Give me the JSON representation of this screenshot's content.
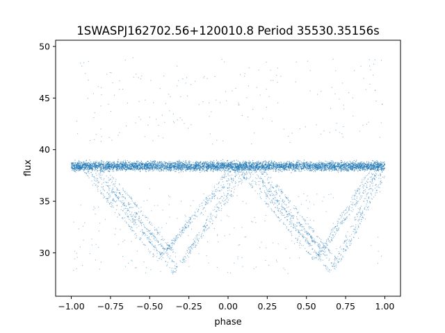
{
  "chart_data": {
    "type": "scatter",
    "title": "1SWASPJ162702.56+120010.8 Period 35530.35156s",
    "xlabel": "phase",
    "ylabel": "flux",
    "xlim": [
      -1.1,
      1.1
    ],
    "ylim": [
      25.8,
      50.6
    ],
    "xticks": [
      -1.0,
      -0.75,
      -0.5,
      -0.25,
      0.0,
      0.25,
      0.5,
      0.75,
      1.0
    ],
    "xtick_labels": [
      "−1.00",
      "−0.75",
      "−0.50",
      "−0.25",
      "0.00",
      "0.25",
      "0.50",
      "0.75",
      "1.00"
    ],
    "yticks": [
      30,
      35,
      40,
      45,
      50
    ],
    "ytick_labels": [
      "30",
      "35",
      "40",
      "45",
      "50"
    ],
    "grid": false,
    "color": "#1f77b4",
    "baseline_flux": 38.4,
    "baseline_spread": 0.55,
    "phase_range": [
      -1.0,
      1.0
    ],
    "dips": [
      {
        "center_phase": -0.42,
        "min_flux": 29.3,
        "ingress_start": -0.92,
        "egress_end": 0.05
      },
      {
        "center_phase": -0.32,
        "min_flux": 28.1,
        "ingress_start": -0.82,
        "egress_end": 0.12
      },
      {
        "center_phase": 0.58,
        "min_flux": 29.3,
        "ingress_start": 0.08,
        "egress_end": 0.95
      },
      {
        "center_phase": 0.68,
        "min_flux": 28.1,
        "ingress_start": 0.18,
        "egress_end": 1.0
      }
    ],
    "outlier_flux_range": [
      28.0,
      49.0
    ]
  }
}
